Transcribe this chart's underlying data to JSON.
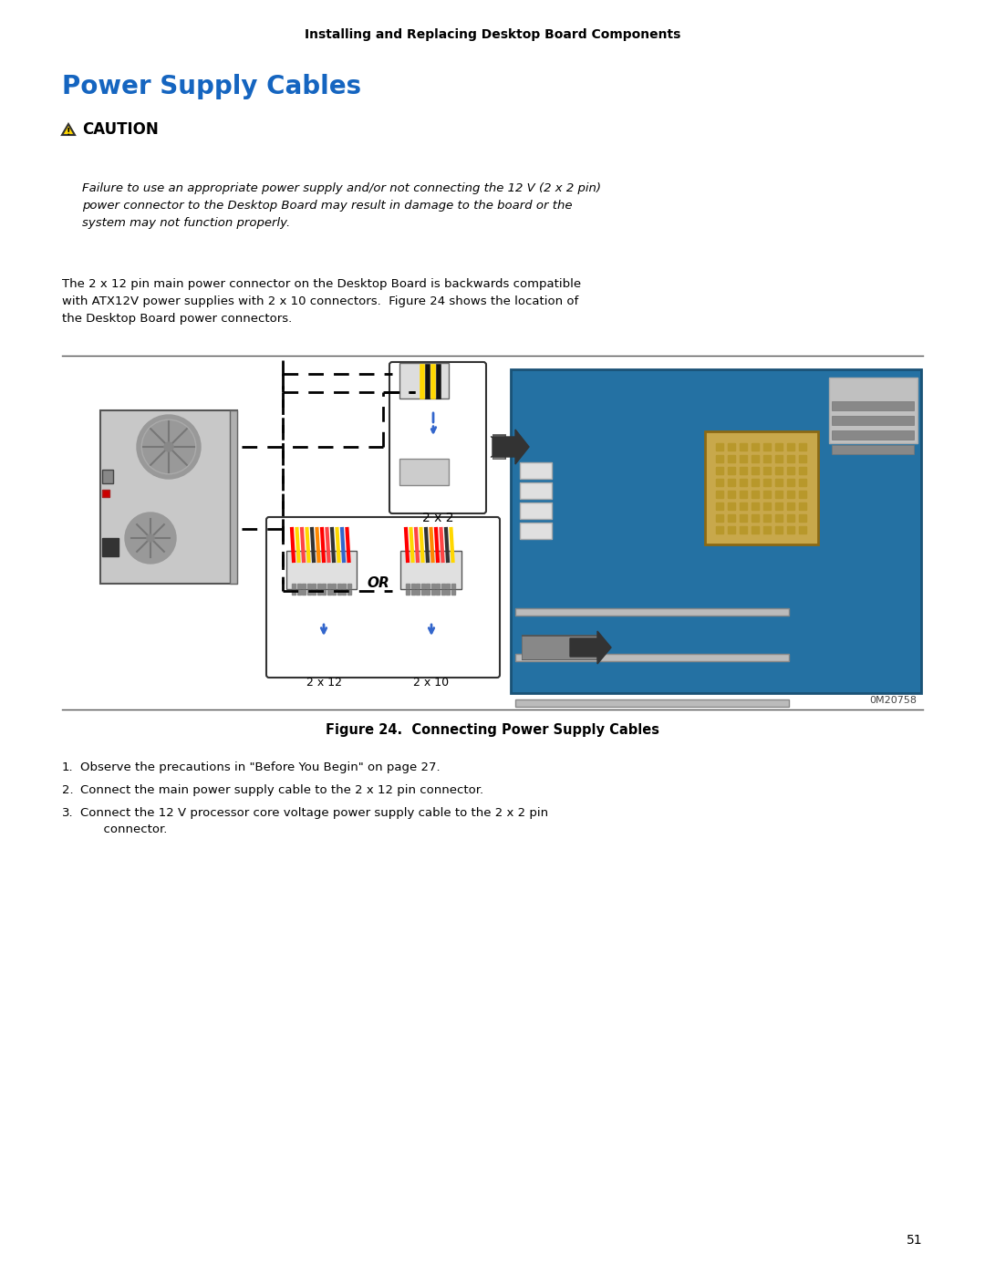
{
  "page_header": "Installing and Replacing Desktop Board Components",
  "section_title": "Power Supply Cables",
  "section_title_color": "#1565C0",
  "caution_title": "CAUTION",
  "caution_text": "Failure to use an appropriate power supply and/or not connecting the 12 V (2 x 2 pin)\npower connector to the Desktop Board may result in damage to the board or the\nsystem may not function properly.",
  "body_text": "The 2 x 12 pin main power connector on the Desktop Board is backwards compatible\nwith ATX12V power supplies with 2 x 10 connectors.  Figure 24 shows the location of\nthe Desktop Board power connectors.",
  "figure_caption": "Figure 24.  Connecting Power Supply Cables",
  "figure_id": "0M20758",
  "steps": [
    "Observe the precautions in \"Before You Begin\" on page 27.",
    "Connect the main power supply cable to the 2 x 12 pin connector.",
    "Connect the 12 V processor core voltage power supply cable to the 2 x 2 pin\n      connector."
  ],
  "page_number": "51",
  "background_color": "#ffffff",
  "text_color": "#000000",
  "line_color": "#000000"
}
